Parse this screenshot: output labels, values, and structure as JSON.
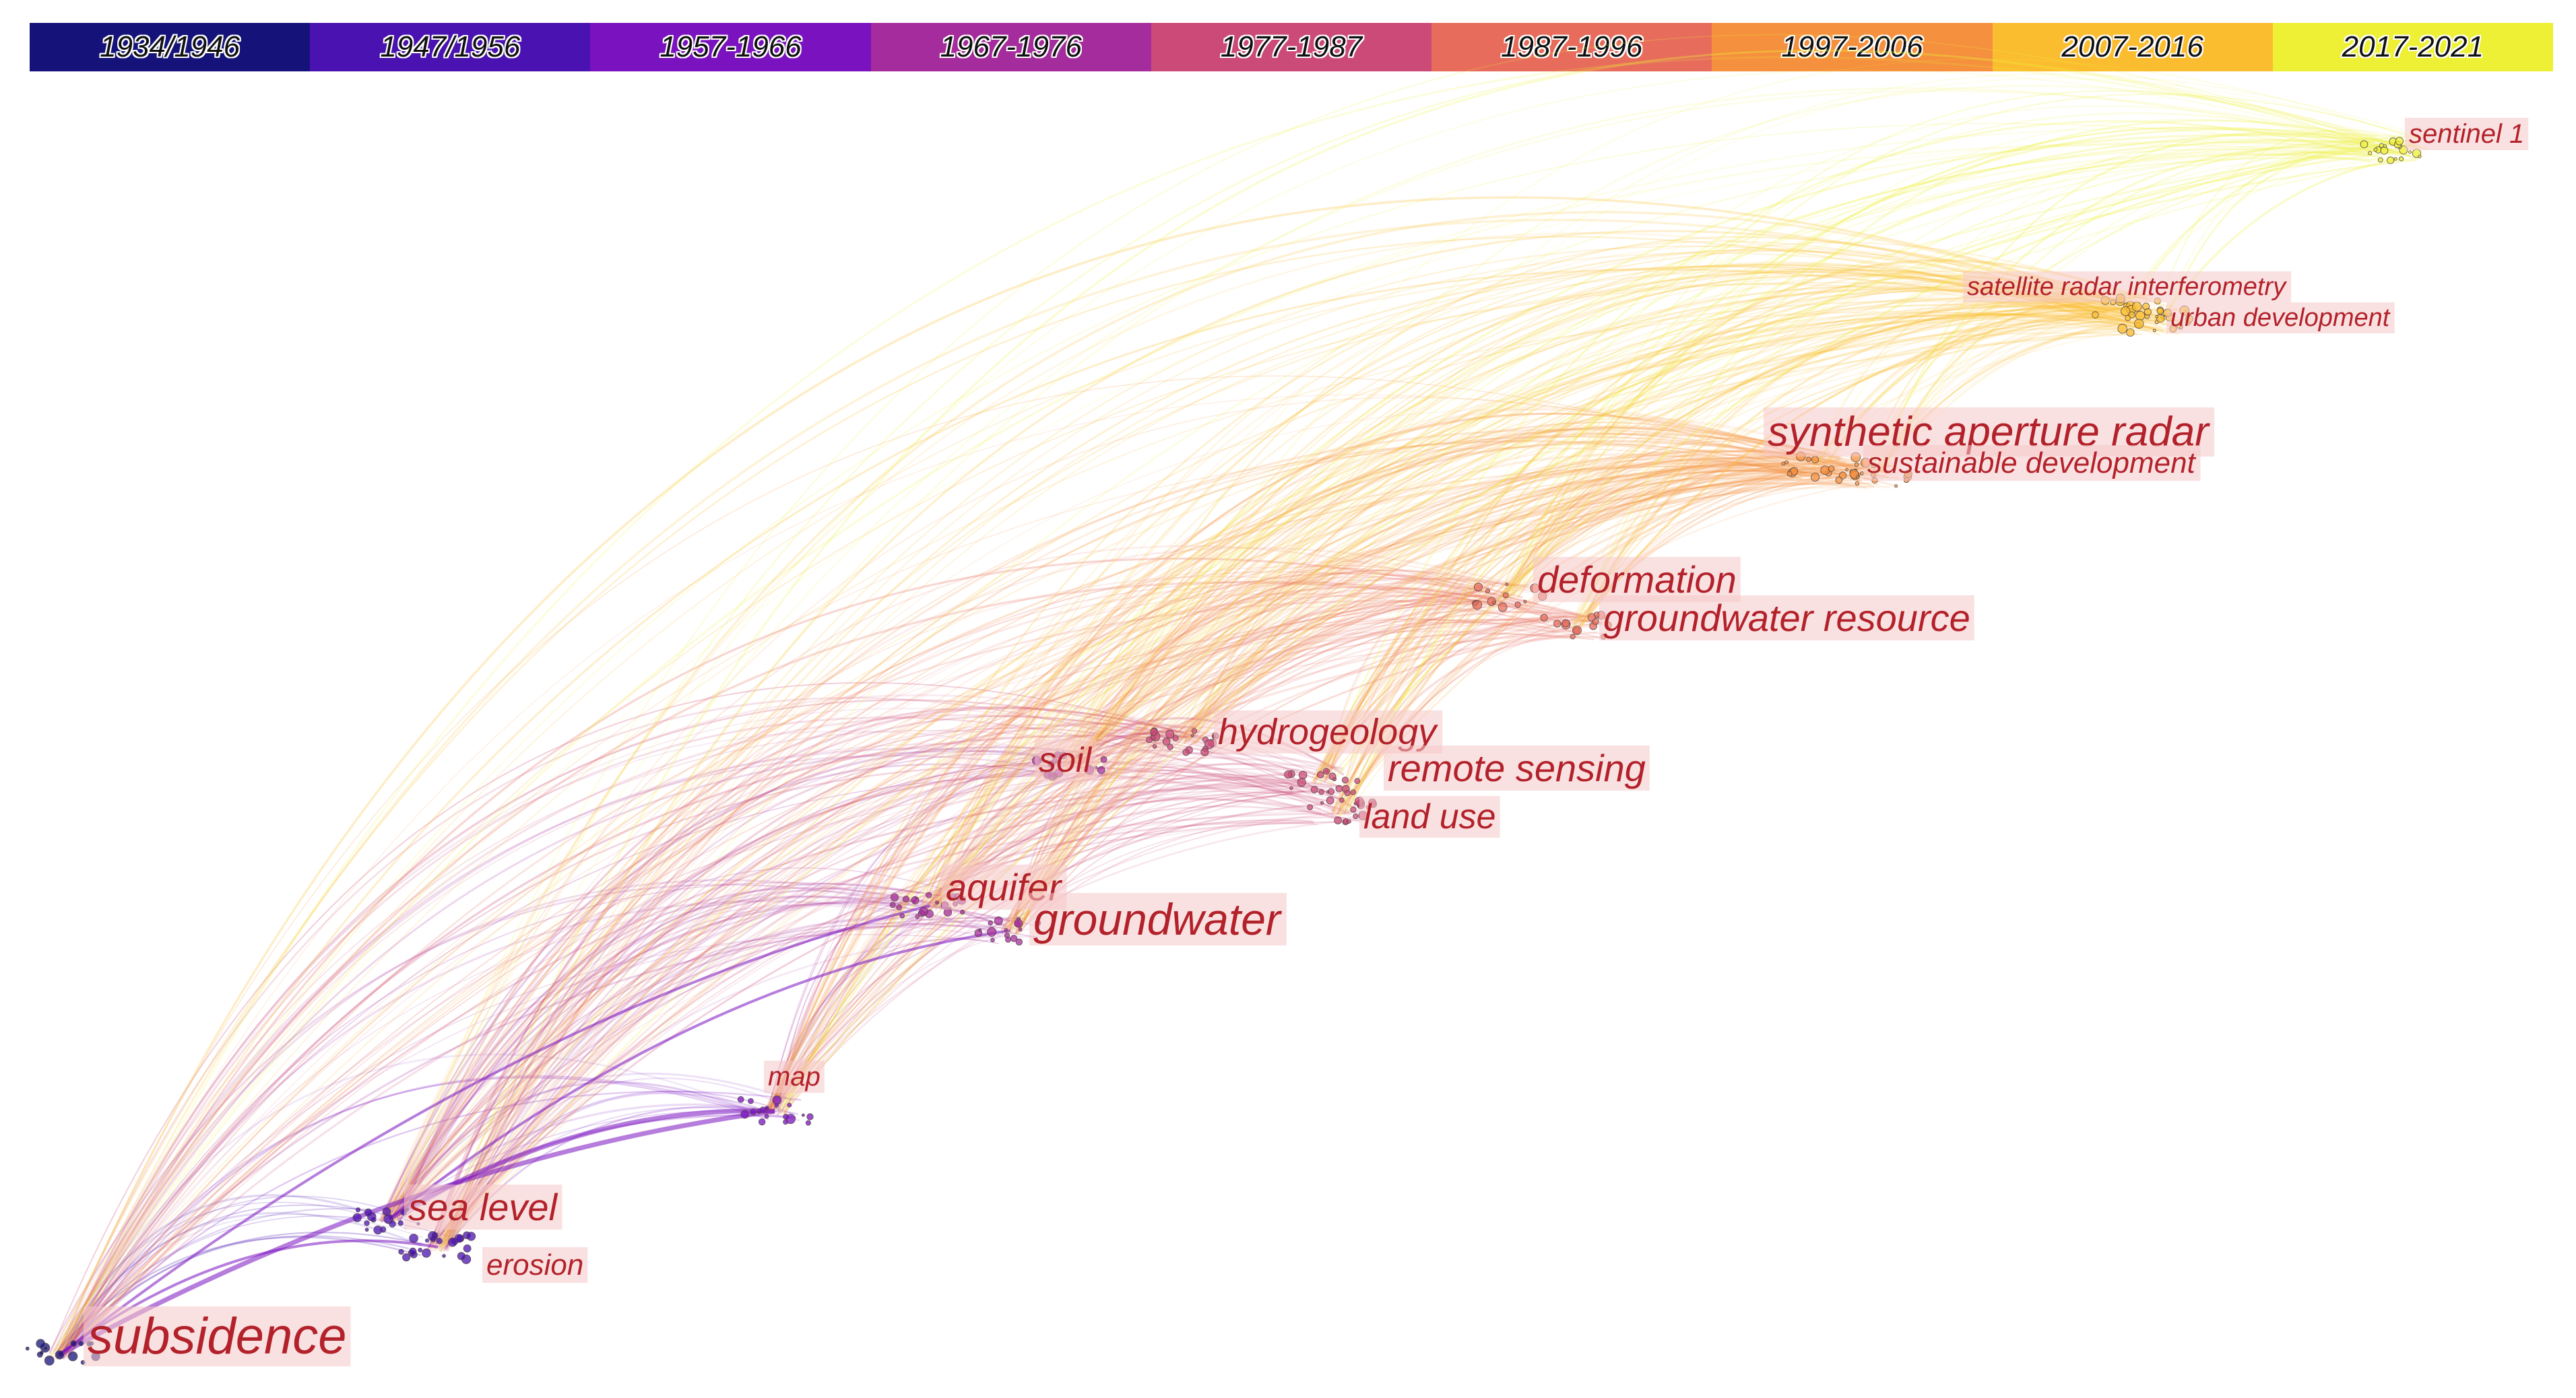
{
  "timeline": {
    "periods": [
      {
        "label": "1934/1946",
        "color": "#15137a"
      },
      {
        "label": "1947/1956",
        "color": "#4a12b0"
      },
      {
        "label": "1957-1966",
        "color": "#7a12c0"
      },
      {
        "label": "1967-1976",
        "color": "#a52c9c"
      },
      {
        "label": "1977-1987",
        "color": "#cc4a78"
      },
      {
        "label": "1987-1996",
        "color": "#e76c5c"
      },
      {
        "label": "1997-2006",
        "color": "#f5903e"
      },
      {
        "label": "2007-2016",
        "color": "#fbbd30"
      },
      {
        "label": "2017-2021",
        "color": "#eef035"
      }
    ]
  },
  "keywords": [
    {
      "id": "subsidence",
      "label": "subsidence",
      "period": 0
    },
    {
      "id": "sea-level",
      "label": "sea level",
      "period": 1
    },
    {
      "id": "erosion",
      "label": "erosion",
      "period": 1
    },
    {
      "id": "map",
      "label": "map",
      "period": 2
    },
    {
      "id": "aquifer",
      "label": "aquifer",
      "period": 3
    },
    {
      "id": "groundwater",
      "label": "groundwater",
      "period": 3
    },
    {
      "id": "soil",
      "label": "soil",
      "period": 3
    },
    {
      "id": "hydrogeology",
      "label": "hydrogeology",
      "period": 4
    },
    {
      "id": "remote-sensing",
      "label": "remote sensing",
      "period": 4
    },
    {
      "id": "land-use",
      "label": "land use",
      "period": 4
    },
    {
      "id": "deformation",
      "label": "deformation",
      "period": 5
    },
    {
      "id": "groundwater-resource",
      "label": "groundwater resource",
      "period": 5
    },
    {
      "id": "synthetic-aperture-radar",
      "label": "synthetic aperture radar",
      "period": 6
    },
    {
      "id": "sustainable-development",
      "label": "sustainable development",
      "period": 6
    },
    {
      "id": "satellite-radar-interferometry",
      "label": "satellite radar interferometry",
      "period": 7
    },
    {
      "id": "urban-development",
      "label": "urban development",
      "period": 7
    },
    {
      "id": "sentinel-1",
      "label": "sentinel 1",
      "period": 8
    }
  ]
}
